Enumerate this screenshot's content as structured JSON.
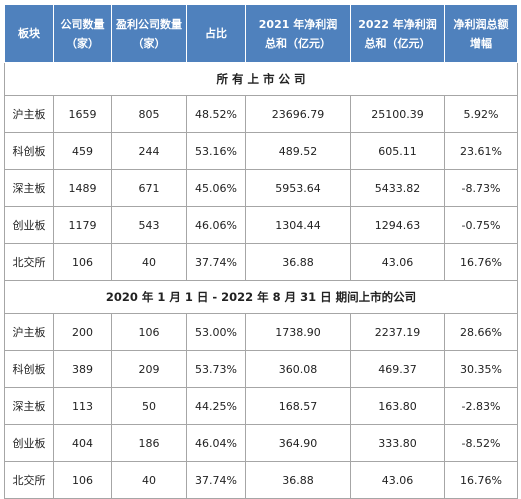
{
  "table": {
    "header": [
      [
        "板块"
      ],
      [
        "公司数量",
        "（家）"
      ],
      [
        "盈利公司数量",
        "（家）"
      ],
      [
        "占比"
      ],
      [
        "2021 年净利润",
        "总和（亿元）"
      ],
      [
        "2022 年净利润",
        "总和（亿元）"
      ],
      [
        "净利润总额",
        "增幅"
      ]
    ],
    "sections": [
      {
        "title": "所 有 上 市 公 司",
        "rows": [
          [
            "沪主板",
            "1659",
            "805",
            "48.52%",
            "23696.79",
            "25100.39",
            "5.92%"
          ],
          [
            "科创板",
            "459",
            "244",
            "53.16%",
            "489.52",
            "605.11",
            "23.61%"
          ],
          [
            "深主板",
            "1489",
            "671",
            "45.06%",
            "5953.64",
            "5433.82",
            "-8.73%"
          ],
          [
            "创业板",
            "1179",
            "543",
            "46.06%",
            "1304.44",
            "1294.63",
            "-0.75%"
          ],
          [
            "北交所",
            "106",
            "40",
            "37.74%",
            "36.88",
            "43.06",
            "16.76%"
          ]
        ]
      },
      {
        "title": "2020 年 1 月 1 日 - 2022 年 8 月 31 日 期间上市的公司",
        "rows": [
          [
            "沪主板",
            "200",
            "106",
            "53.00%",
            "1738.90",
            "2237.19",
            "28.66%"
          ],
          [
            "科创板",
            "389",
            "209",
            "53.73%",
            "360.08",
            "469.37",
            "30.35%"
          ],
          [
            "深主板",
            "113",
            "50",
            "44.25%",
            "168.57",
            "163.80",
            "-2.83%"
          ],
          [
            "创业板",
            "404",
            "186",
            "46.04%",
            "364.90",
            "333.80",
            "-8.52%"
          ],
          [
            "北交所",
            "106",
            "40",
            "37.74%",
            "36.88",
            "43.06",
            "16.76%"
          ]
        ]
      }
    ]
  }
}
